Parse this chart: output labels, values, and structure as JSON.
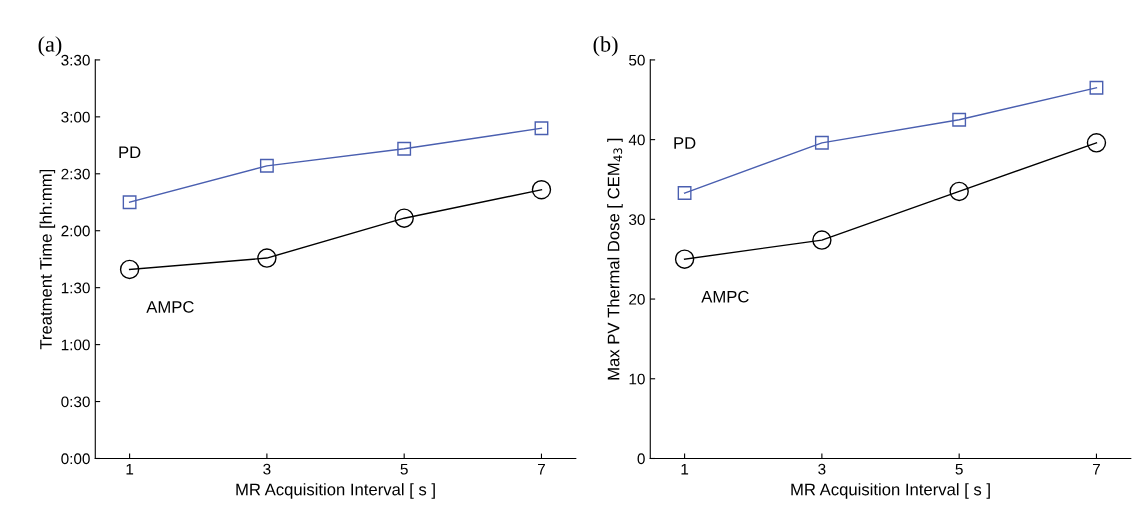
{
  "chart_data": [
    {
      "type": "line",
      "title": "(a)",
      "xlabel": "MR Acquisition Interval [ s ]",
      "ylabel": "Treatment Time [hh:mm]",
      "x": [
        1,
        3,
        5,
        7
      ],
      "xlim": [
        0.5,
        7.5
      ],
      "xticks": [
        1,
        3,
        5,
        7
      ],
      "ylim": [
        0,
        3.5
      ],
      "yticks": [
        {
          "value": 0,
          "label": "0:00"
        },
        {
          "value": 0.5,
          "label": "0:30"
        },
        {
          "value": 1,
          "label": "1:00"
        },
        {
          "value": 1.5,
          "label": "1:30"
        },
        {
          "value": 2,
          "label": "2:00"
        },
        {
          "value": 2.5,
          "label": "2:30"
        },
        {
          "value": 3,
          "label": "3:00"
        },
        {
          "value": 3.5,
          "label": "3:30"
        }
      ],
      "grid": false,
      "legend": false,
      "line_style": "solid",
      "series": [
        {
          "name": "PD",
          "color": "#4a5fb0",
          "marker": "square",
          "values": [
            2.25,
            2.57,
            2.72,
            2.9
          ]
        },
        {
          "name": "AMPC",
          "color": "#000000",
          "marker": "circle",
          "values": [
            1.66,
            1.76,
            2.11,
            2.36
          ]
        }
      ]
    },
    {
      "type": "line",
      "title": "(b)",
      "xlabel": "MR Acquisition Interval [ s ]",
      "ylabel": "Max PV Thermal Dose [ CEM$_{43}$ ]",
      "x": [
        1,
        3,
        5,
        7
      ],
      "xlim": [
        0.5,
        7.5
      ],
      "xticks": [
        1,
        3,
        5,
        7
      ],
      "ylim": [
        0,
        50
      ],
      "yticks": [
        0,
        10,
        20,
        30,
        40,
        50
      ],
      "grid": false,
      "legend": false,
      "line_style": "solid",
      "series": [
        {
          "name": "PD",
          "color": "#4a5fb0",
          "marker": "square",
          "values": [
            33.3,
            39.6,
            42.5,
            46.5
          ]
        },
        {
          "name": "AMPC",
          "color": "#000000",
          "marker": "circle",
          "values": [
            25.0,
            27.4,
            33.5,
            39.6
          ]
        }
      ]
    }
  ]
}
